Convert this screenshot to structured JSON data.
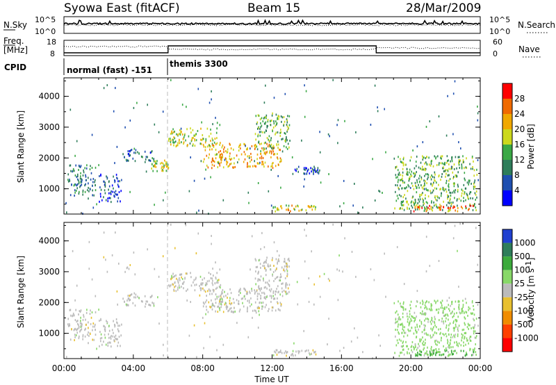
{
  "header": {
    "station": "Syowa East (fitACF)",
    "beam": "Beam 15",
    "date": "28/Mar/2009"
  },
  "sky_panel": {
    "left_label": "N.Sky",
    "right_label": "N.Search",
    "ticks": [
      "10^5",
      "10^0"
    ]
  },
  "freq_panel": {
    "left_label_1": "Freq.",
    "left_label_2": "[MHz]",
    "left_ticks": [
      "18",
      "8"
    ],
    "right_label": "Nave",
    "right_ticks": [
      "60",
      "0"
    ]
  },
  "cpid": {
    "label": "CPID",
    "segments": [
      {
        "name": "normal (fast) -151",
        "start_hour": 0,
        "end_hour": 6
      },
      {
        "name": "themis 3300",
        "start_hour": 6,
        "end_hour": 24
      }
    ]
  },
  "time_axis": {
    "label": "Time UT",
    "ticks": [
      "00:00",
      "04:00",
      "08:00",
      "12:00",
      "16:00",
      "20:00",
      "00:00"
    ]
  },
  "range_axis": {
    "label": "Slant Range [km]",
    "ticks": [
      "1000",
      "2000",
      "3000",
      "4000"
    ]
  },
  "power_scale": {
    "label": "Power [dB]",
    "ticks": [
      "4",
      "8",
      "12",
      "16",
      "20",
      "24",
      "28"
    ],
    "colors": [
      "#0000ff",
      "#1f4fb0",
      "#2e7d5a",
      "#3aa845",
      "#ccd81c",
      "#f0a800",
      "#f06a00",
      "#ff0000"
    ]
  },
  "velocity_scale": {
    "label": "Velocity [m s",
    "label_sup": "-1",
    "label_end": "]",
    "ticks": [
      "1000",
      "500",
      "100",
      "25",
      "-25",
      "-100",
      "-500",
      "-1000"
    ],
    "colors": [
      "#2040d0",
      "#2e7d5a",
      "#3caa3c",
      "#88d868",
      "#bbbbbb",
      "#e8c030",
      "#f08c00",
      "#ff4000",
      "#ff0000"
    ]
  },
  "chart_data": [
    {
      "type": "heatmap",
      "title": "Power",
      "xlabel": "Time UT",
      "ylabel": "Slant Range [km]",
      "xlim_hours": [
        0,
        24
      ],
      "ylim_km": [
        180,
        4600
      ],
      "colorbar_label": "Power [dB]",
      "colorbar_range": [
        0,
        32
      ],
      "regions": [
        {
          "t": [
            0.2,
            1.8
          ],
          "r": [
            800,
            1800
          ],
          "v": 10
        },
        {
          "t": [
            2.0,
            3.3
          ],
          "r": [
            600,
            1500
          ],
          "v": 6
        },
        {
          "t": [
            3.3,
            5.2
          ],
          "r": [
            1900,
            2300
          ],
          "v": 8
        },
        {
          "t": [
            5.0,
            6.0
          ],
          "r": [
            1600,
            1950
          ],
          "v": 18
        },
        {
          "t": [
            6.0,
            9.0
          ],
          "r": [
            2400,
            3000
          ],
          "v": 18
        },
        {
          "t": [
            8.0,
            12.5
          ],
          "r": [
            1700,
            2500
          ],
          "v": 22
        },
        {
          "t": [
            11.0,
            13.0
          ],
          "r": [
            2300,
            3500
          ],
          "v": 14
        },
        {
          "t": [
            13.0,
            14.8
          ],
          "r": [
            1500,
            1750
          ],
          "v": 6
        },
        {
          "t": [
            12.0,
            14.5
          ],
          "r": [
            300,
            500
          ],
          "v": 20
        },
        {
          "t": [
            19.0,
            23.8
          ],
          "r": [
            300,
            2100
          ],
          "v": 14
        },
        {
          "t": [
            20.0,
            23.6
          ],
          "r": [
            300,
            480
          ],
          "v": 26
        }
      ]
    },
    {
      "type": "heatmap",
      "title": "Velocity",
      "xlabel": "Time UT",
      "ylabel": "Slant Range [km]",
      "xlim_hours": [
        0,
        24
      ],
      "ylim_km": [
        180,
        4600
      ],
      "colorbar_label": "Velocity [m s-1]",
      "colorbar_levels": [
        1000,
        500,
        100,
        25,
        -25,
        -100,
        -500,
        -1000
      ],
      "regions": [
        {
          "t": [
            0.2,
            1.8
          ],
          "r": [
            800,
            1800
          ],
          "v": 0
        },
        {
          "t": [
            2.0,
            3.3
          ],
          "r": [
            600,
            1500
          ],
          "v": 0
        },
        {
          "t": [
            3.3,
            5.2
          ],
          "r": [
            1900,
            2300
          ],
          "v": 0
        },
        {
          "t": [
            6.0,
            9.0
          ],
          "r": [
            2400,
            3000
          ],
          "v": 0
        },
        {
          "t": [
            8.0,
            12.5
          ],
          "r": [
            1700,
            2500
          ],
          "v": 0
        },
        {
          "t": [
            11.0,
            13.0
          ],
          "r": [
            2300,
            3500
          ],
          "v": 0
        },
        {
          "t": [
            12.0,
            14.5
          ],
          "r": [
            300,
            500
          ],
          "v": 0
        },
        {
          "t": [
            19.0,
            23.8
          ],
          "r": [
            300,
            2100
          ],
          "v": 50
        },
        {
          "t": [
            20.0,
            23.6
          ],
          "r": [
            300,
            480
          ],
          "v": 400
        }
      ]
    }
  ]
}
